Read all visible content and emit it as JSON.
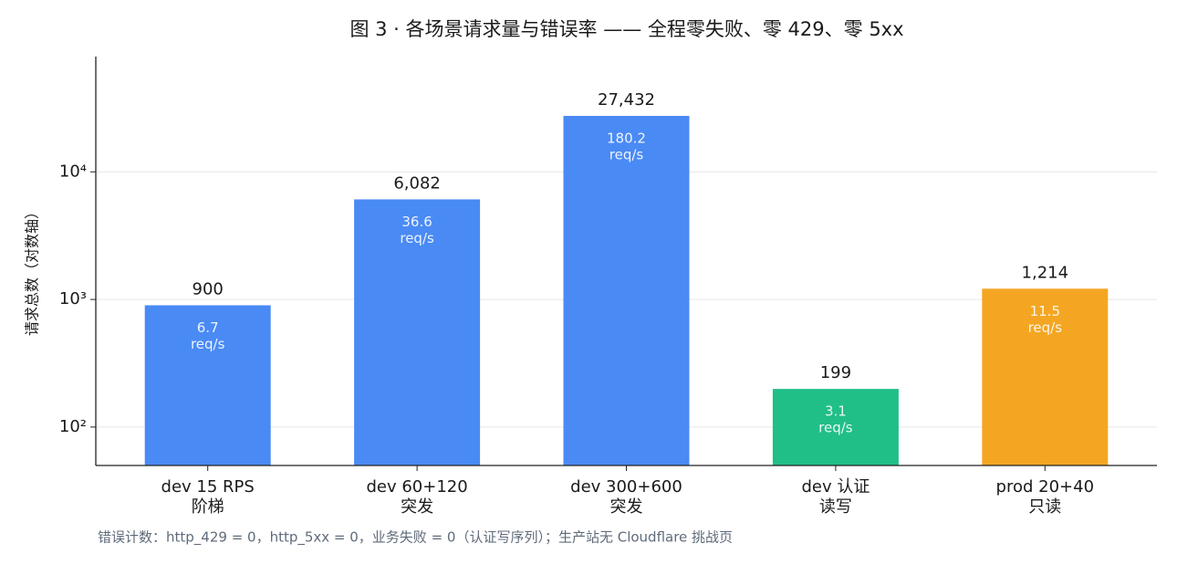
{
  "chart_data": {
    "type": "bar",
    "title": "图 3 · 各场景请求量与错误率 —— 全程零失败、零 429、零 5xx",
    "y_label": "请求总数（对数轴）",
    "footnote": "错误计数：http_429 = 0，http_5xx = 0，业务失败 = 0（认证写序列）；生产站无 Cloudflare 挑战页",
    "categories": [
      [
        "dev 15 RPS",
        "阶梯"
      ],
      [
        "dev 60+120",
        "突发"
      ],
      [
        "dev 300+600",
        "突发"
      ],
      [
        "dev 认证",
        "读写"
      ],
      [
        "prod 20+40",
        "只读"
      ]
    ],
    "values": [
      900,
      6082,
      27432,
      199,
      1214
    ],
    "value_labels": [
      "900",
      "6,082",
      "27,432",
      "199",
      "1,214"
    ],
    "rates": [
      6.7,
      36.6,
      180.2,
      3.1,
      11.5
    ],
    "rate_unit": "req/s",
    "colors": [
      "#4a8af4",
      "#4a8af4",
      "#4a8af4",
      "#20bf88",
      "#f4a623"
    ],
    "log_scale": true,
    "ylim": [
      50,
      80000
    ],
    "yticks": [
      {
        "value": 100,
        "label": "10²"
      },
      {
        "value": 1000,
        "label": "10³"
      },
      {
        "value": 10000,
        "label": "10⁴"
      }
    ],
    "grid": true
  }
}
